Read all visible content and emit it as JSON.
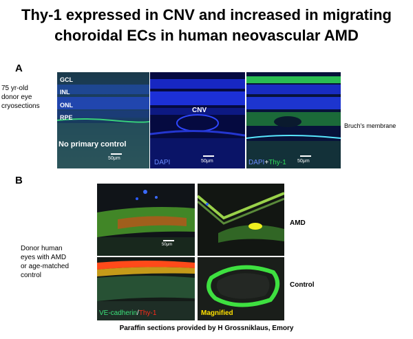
{
  "title": {
    "line1": "Thy-1 expressed  in CNV and increased in migrating",
    "line2": "choroidal ECs in human neovascular AMD"
  },
  "panel_a": {
    "letter": "A",
    "side_label": [
      "75 yr-old",
      "donor eye",
      "cryosections"
    ],
    "bruchs_label": "Bruch's membrane",
    "image1": {
      "layers": [
        "GCL",
        "INL",
        "ONL",
        "RPE"
      ],
      "caption": "No primary control",
      "scale": "50μm"
    },
    "image2": {
      "center_label": "CNV",
      "stain": "DAPI",
      "scale": "50μm"
    },
    "image3": {
      "stain_a": "DAPI",
      "plus": "+",
      "stain_b": "Thy-1",
      "scale": "50μm"
    }
  },
  "panel_b": {
    "letter": "B",
    "side_label": [
      "Donor human",
      "eyes with AMD",
      "or age-matched",
      "control"
    ],
    "row_labels": [
      "AMD",
      "Control"
    ],
    "scale": "50μm",
    "stain_a": "VE-cadherin",
    "slash": "/",
    "stain_b": "Thy-1",
    "magnified": "Magnified"
  },
  "footer": "Paraffin sections provided by H Grossniklaus, Emory",
  "colors": {
    "dapi_blue": "#1530e0",
    "thy1_green": "#2ee05a",
    "thy1_red": "#ff2a1a",
    "ve_green": "#3ce07a",
    "magnified_yellow": "#ffe000",
    "background_dark": "#0a0a1a"
  }
}
